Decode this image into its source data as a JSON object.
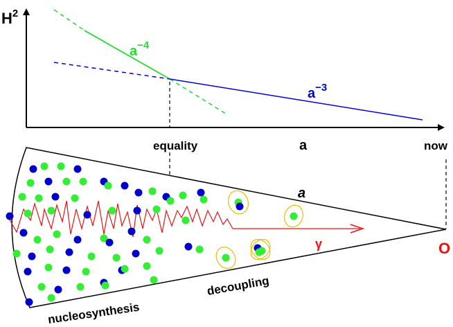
{
  "plot": {
    "ylabel": "H",
    "ylabel_sup": "2",
    "radiation_label": "a",
    "radiation_exp": "−4",
    "matter_label": "a",
    "matter_exp": "−3",
    "x_tick_equality": "equality",
    "x_label": "a",
    "x_tick_now": "now"
  },
  "cone": {
    "scale_label": "a",
    "photon_label": "γ",
    "observer_label": "O",
    "decoupling_label": "decoupling",
    "nucleosynthesis_label": "nucleosynthesis"
  },
  "colors": {
    "axis": "#000000",
    "radiation": "#22dd33",
    "matter": "#0000dd",
    "photon": "#ee1111",
    "atom_orbit": "#eebb00",
    "baryon_green": "#33ee33",
    "baryon_blue": "#0000cc"
  }
}
